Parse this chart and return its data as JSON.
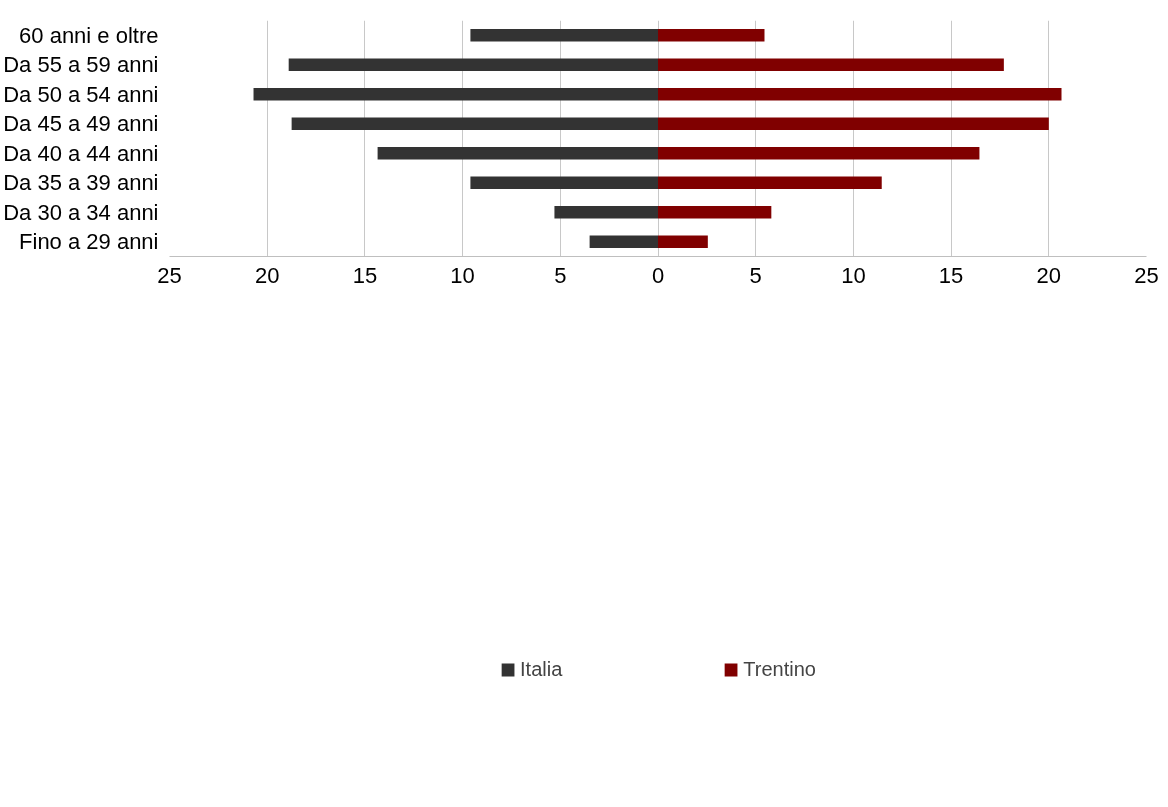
{
  "chart_data": {
    "type": "bar",
    "orientation": "horizontal",
    "stacked": true,
    "categories": [
      "60 anni e oltre",
      "Da 55 a 59 anni",
      "Da 50 a 54 anni",
      "Da 45 a 49 anni",
      "Da 40 a 44 anni",
      "Da 35 a 39 anni",
      "Da 30 a 34 anni",
      "Fino a 29 anni"
    ],
    "series": [
      {
        "name": "Italia",
        "color": "#333333",
        "values": [
          -9.6,
          -18.9,
          -20.7,
          -18.75,
          -14.35,
          -9.6,
          -5.3,
          -3.5
        ]
      },
      {
        "name": "Trentino",
        "color": "#800000",
        "values": [
          5.45,
          17.7,
          20.65,
          20.0,
          16.45,
          11.45,
          5.8,
          2.55
        ]
      }
    ],
    "xlim": [
      -25,
      25
    ],
    "xticks": [
      {
        "value": -25,
        "label": "25"
      },
      {
        "value": -20,
        "label": "20"
      },
      {
        "value": -15,
        "label": "15"
      },
      {
        "value": -10,
        "label": "10"
      },
      {
        "value": -5,
        "label": "5"
      },
      0,
      5,
      10,
      15,
      20,
      25
    ],
    "grid": "x",
    "legend": "bottom"
  }
}
